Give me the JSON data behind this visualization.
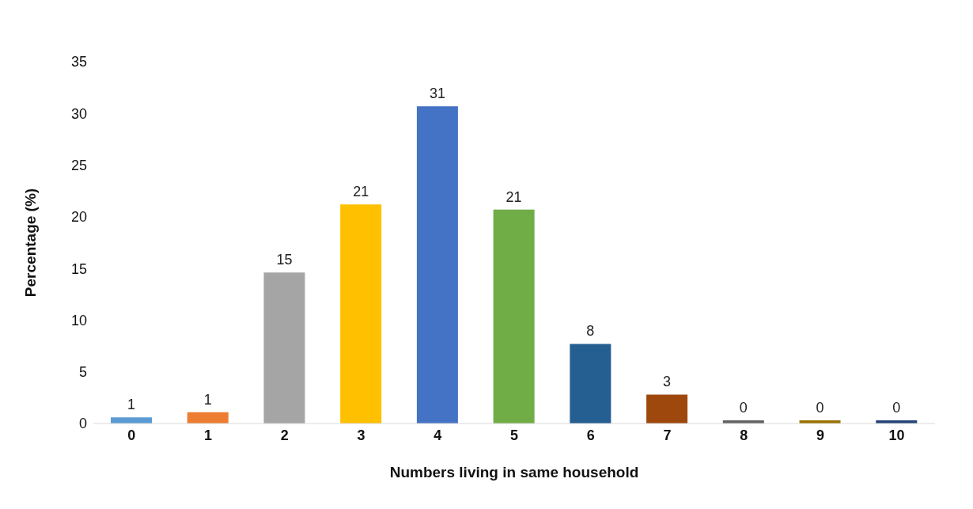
{
  "chart_data": {
    "type": "bar",
    "xlabel": "Numbers living in same household",
    "ylabel": "Percentage (%)",
    "categories": [
      "0",
      "1",
      "2",
      "3",
      "4",
      "5",
      "6",
      "7",
      "8",
      "9",
      "10"
    ],
    "values": [
      0.6,
      1.1,
      14.6,
      21.2,
      30.7,
      20.7,
      7.7,
      2.8,
      0.3,
      0.3,
      0.3
    ],
    "value_labels": [
      "1",
      "1",
      "15",
      "21",
      "31",
      "21",
      "8",
      "3",
      "0",
      "0",
      "0"
    ],
    "colors": [
      "#5b9bd5",
      "#ed7d31",
      "#a5a5a5",
      "#ffc000",
      "#4472c4",
      "#70ad47",
      "#255e91",
      "#9e480e",
      "#636363",
      "#997300",
      "#264478"
    ],
    "ylim": [
      0,
      35
    ],
    "yticks": [
      0,
      5,
      10,
      15,
      20,
      25,
      30,
      35
    ],
    "grid": false
  }
}
